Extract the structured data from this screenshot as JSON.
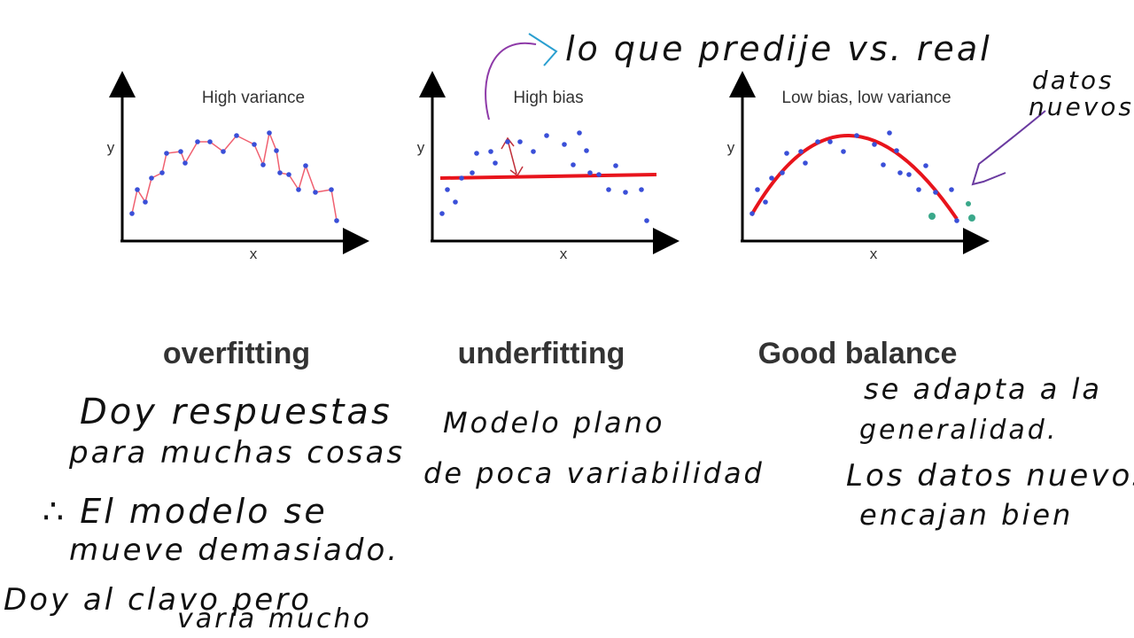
{
  "panels": [
    {
      "title": "High variance",
      "x_label": "x",
      "y_label": "y",
      "caption": "overfitting",
      "notes": [
        "Doy respuestas",
        "para muchas cosas",
        "∴ El modelo se",
        "mueve demasiado.",
        "Doy al clavo pero",
        "varia mucho"
      ]
    },
    {
      "title": "High bias",
      "x_label": "x",
      "y_label": "y",
      "caption": "underfitting",
      "notes": [
        "Modelo plano",
        "de poca variabilidad"
      ]
    },
    {
      "title": "Low bias, low variance",
      "x_label": "x",
      "y_label": "y",
      "caption": "Good balance",
      "notes": [
        "se adapta a la",
        "generalidad.",
        "Los datos nuevos",
        "encajan bien"
      ]
    }
  ],
  "annotations": {
    "prediction": "lo que predije vs. real",
    "new_data": [
      "datos",
      "nuevos"
    ]
  }
}
